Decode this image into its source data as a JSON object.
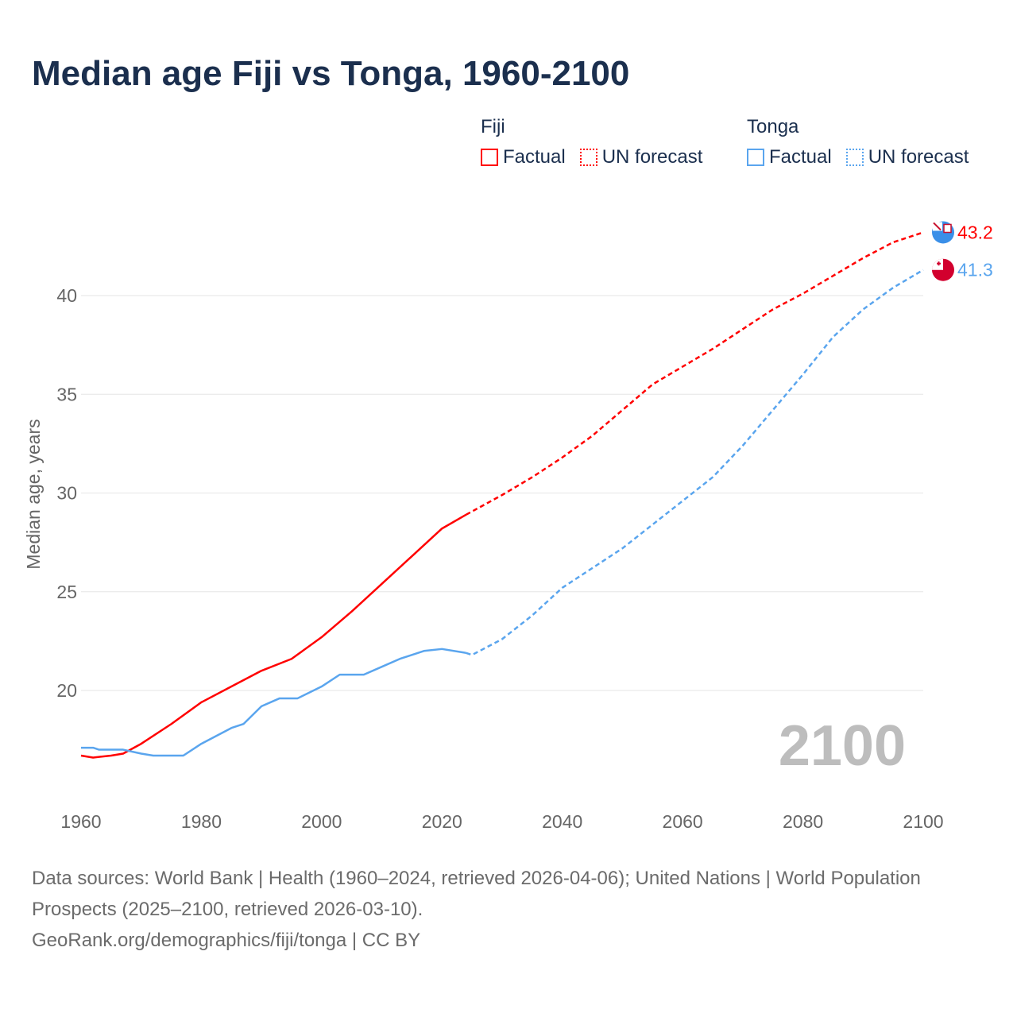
{
  "chart_data": {
    "type": "line",
    "title": "Median age Fiji vs Tonga, 1960-2100",
    "xlabel": "",
    "ylabel": "Median age, years",
    "xlim": [
      1960,
      2100
    ],
    "ylim": [
      15,
      44
    ],
    "xticks": [
      1960,
      1980,
      2000,
      2020,
      2040,
      2060,
      2080,
      2100
    ],
    "yticks": [
      20,
      25,
      30,
      35,
      40
    ],
    "grid": true,
    "watermark_year": "2100",
    "legend": {
      "placement": "top-right",
      "groups": [
        {
          "name": "Fiji",
          "items": [
            "Factual",
            "UN forecast"
          ],
          "color": "#ff0000"
        },
        {
          "name": "Tonga",
          "items": [
            "Factual",
            "UN forecast"
          ],
          "color": "#5aa5ee"
        }
      ]
    },
    "series": [
      {
        "name": "Fiji",
        "color": "#ff0000",
        "end_label": "43.2",
        "factual": {
          "x": [
            1960,
            1962,
            1965,
            1967,
            1970,
            1975,
            1980,
            1985,
            1990,
            1995,
            2000,
            2005,
            2010,
            2015,
            2020,
            2024
          ],
          "y": [
            16.7,
            16.6,
            16.7,
            16.8,
            17.3,
            18.3,
            19.4,
            20.2,
            21.0,
            21.6,
            22.7,
            24.0,
            25.4,
            26.8,
            28.2,
            28.9
          ]
        },
        "forecast": {
          "x": [
            2024,
            2030,
            2035,
            2040,
            2045,
            2050,
            2055,
            2060,
            2065,
            2070,
            2075,
            2080,
            2085,
            2090,
            2095,
            2100
          ],
          "y": [
            28.9,
            29.9,
            30.8,
            31.8,
            32.9,
            34.2,
            35.5,
            36.4,
            37.3,
            38.3,
            39.3,
            40.1,
            41.0,
            41.9,
            42.7,
            43.2
          ]
        }
      },
      {
        "name": "Tonga",
        "color": "#5aa5ee",
        "end_label": "41.3",
        "factual": {
          "x": [
            1960,
            1962,
            1963,
            1967,
            1970,
            1972,
            1975,
            1977,
            1980,
            1985,
            1987,
            1990,
            1993,
            1996,
            2000,
            2003,
            2007,
            2010,
            2013,
            2017,
            2020,
            2024
          ],
          "y": [
            17.1,
            17.1,
            17.0,
            17.0,
            16.8,
            16.7,
            16.7,
            16.7,
            17.3,
            18.1,
            18.3,
            19.2,
            19.6,
            19.6,
            20.2,
            20.8,
            20.8,
            21.2,
            21.6,
            22.0,
            22.1,
            21.9
          ]
        },
        "forecast": {
          "x": [
            2024,
            2025,
            2030,
            2035,
            2040,
            2045,
            2050,
            2055,
            2060,
            2065,
            2070,
            2075,
            2080,
            2085,
            2090,
            2095,
            2100
          ],
          "y": [
            21.9,
            21.8,
            22.6,
            23.8,
            25.2,
            26.2,
            27.2,
            28.4,
            29.6,
            30.8,
            32.4,
            34.2,
            36.0,
            37.9,
            39.3,
            40.4,
            41.3
          ]
        }
      }
    ]
  },
  "footer": {
    "sources": "Data sources: World Bank | Health (1960–2024, retrieved 2026-04-06); United Nations | World Population Prospects (2025–2100, retrieved 2026-03-10).",
    "credit": "GeoRank.org/demographics/fiji/tonga | CC BY"
  }
}
